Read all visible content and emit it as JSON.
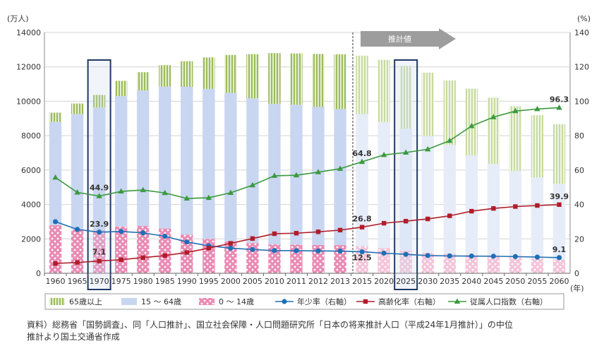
{
  "chart_data": {
    "type": "bar",
    "left_unit": "(万人)",
    "right_unit": "(%)",
    "x_unit": "(年)",
    "ylim_left": [
      0,
      14000
    ],
    "ylim_right": [
      0,
      140
    ],
    "left_ticks": [
      0,
      2000,
      4000,
      6000,
      8000,
      10000,
      12000,
      14000
    ],
    "right_ticks": [
      0,
      20,
      40,
      60,
      80,
      100,
      120,
      140
    ],
    "categories": [
      "1960",
      "1965",
      "1970",
      "1975",
      "1980",
      "1985",
      "1990",
      "1995",
      "2000",
      "2005",
      "2010",
      "2011",
      "2012",
      "2013",
      "2015",
      "2020",
      "2025",
      "2030",
      "2035",
      "2040",
      "2045",
      "2050",
      "2055",
      "2060"
    ],
    "projection_start_index": 14,
    "projection_label": "推計値",
    "highlight_indices": [
      2,
      16
    ],
    "bar_series": [
      {
        "name": "0〜14歳",
        "color": "#e98bb4",
        "values": [
          2800,
          2550,
          2480,
          2720,
          2750,
          2600,
          2250,
          2000,
          1850,
          1760,
          1680,
          1670,
          1650,
          1640,
          1580,
          1460,
          1320,
          1200,
          1130,
          1070,
          1010,
          940,
          860,
          790
        ]
      },
      {
        "name": "15〜64歳",
        "color": "#c9d6f1",
        "values": [
          6000,
          6700,
          7160,
          7580,
          7880,
          8250,
          8590,
          8720,
          8640,
          8410,
          8170,
          8130,
          8020,
          7900,
          7680,
          7340,
          7080,
          6770,
          6340,
          5790,
          5350,
          5000,
          4710,
          4420
        ]
      },
      {
        "name": "65歳以上",
        "color": "#9cbc59",
        "values": [
          540,
          620,
          730,
          890,
          1060,
          1250,
          1490,
          1830,
          2200,
          2570,
          2950,
          2980,
          3080,
          3190,
          3390,
          3610,
          3660,
          3690,
          3740,
          3870,
          3850,
          3770,
          3620,
          3460
        ]
      }
    ],
    "line_series": [
      {
        "name": "年少率（右軸）",
        "color": "#1f6fb6",
        "marker": "circle",
        "values": [
          30,
          25.5,
          23.9,
          24.3,
          23.5,
          21.5,
          18.2,
          16,
          14.6,
          13.8,
          13.2,
          13.1,
          13,
          12.9,
          12.5,
          11.7,
          11,
          10.3,
          10.1,
          10,
          9.9,
          9.7,
          9.4,
          9.1
        ]
      },
      {
        "name": "高齢化率（右軸）",
        "color": "#b01d28",
        "marker": "square",
        "values": [
          5.7,
          6.3,
          7.1,
          7.9,
          9.1,
          10.3,
          12.1,
          14.6,
          17.4,
          20.2,
          23,
          23.3,
          24.1,
          25.1,
          26.8,
          29.1,
          30.3,
          31.6,
          33.4,
          36.1,
          37.7,
          38.8,
          39.4,
          39.9
        ]
      },
      {
        "name": "従属人口指数（右軸）",
        "color": "#3a9a3e",
        "marker": "triangle",
        "values": [
          55.7,
          47,
          44.9,
          47.6,
          48.4,
          46.7,
          43.5,
          43.9,
          46.8,
          51.2,
          56.7,
          57,
          58.8,
          60.8,
          64.8,
          68.8,
          70.2,
          72.1,
          77.1,
          85.6,
          90.8,
          94.3,
          95.5,
          96.3
        ]
      }
    ],
    "annotations": [
      {
        "text": "44.9",
        "index": 2,
        "value": 44.9
      },
      {
        "text": "23.9",
        "index": 2,
        "value": 23.9
      },
      {
        "text": "7.1",
        "index": 2,
        "value": 7.1
      },
      {
        "text": "64.8",
        "index": 14,
        "value": 64.8
      },
      {
        "text": "26.8",
        "index": 14,
        "value": 26.8
      },
      {
        "text": "12.5",
        "index": 14,
        "value": 12.5
      },
      {
        "text": "96.3",
        "index": 23,
        "value": 96.3
      },
      {
        "text": "39.9",
        "index": 23,
        "value": 39.9
      },
      {
        "text": "9.1",
        "index": 23,
        "value": 9.1
      }
    ],
    "legend": [
      {
        "label": "65歳以上",
        "kind": "bar",
        "color": "#9cbc59"
      },
      {
        "label": "15 〜 64歳",
        "kind": "bar",
        "color": "#c9d6f1"
      },
      {
        "label": "0 〜 14歳",
        "kind": "bar",
        "color": "#e98bb4"
      },
      {
        "label": "年少率（右軸）",
        "kind": "line",
        "marker": "circle",
        "color": "#1f6fb6"
      },
      {
        "label": "高齢化率（右軸）",
        "kind": "line",
        "marker": "square",
        "color": "#b01d28"
      },
      {
        "label": "従属人口指数（右軸）",
        "kind": "line",
        "marker": "triangle",
        "color": "#3a9a3e"
      }
    ]
  },
  "source": {
    "line1": "資料）総務省「国勢調査」、同「人口推計」、国立社会保障・人口問題研究所「日本の将来推計人口（平成24年1月推計）」の中位",
    "line2": "推計より国土交通省作成"
  }
}
